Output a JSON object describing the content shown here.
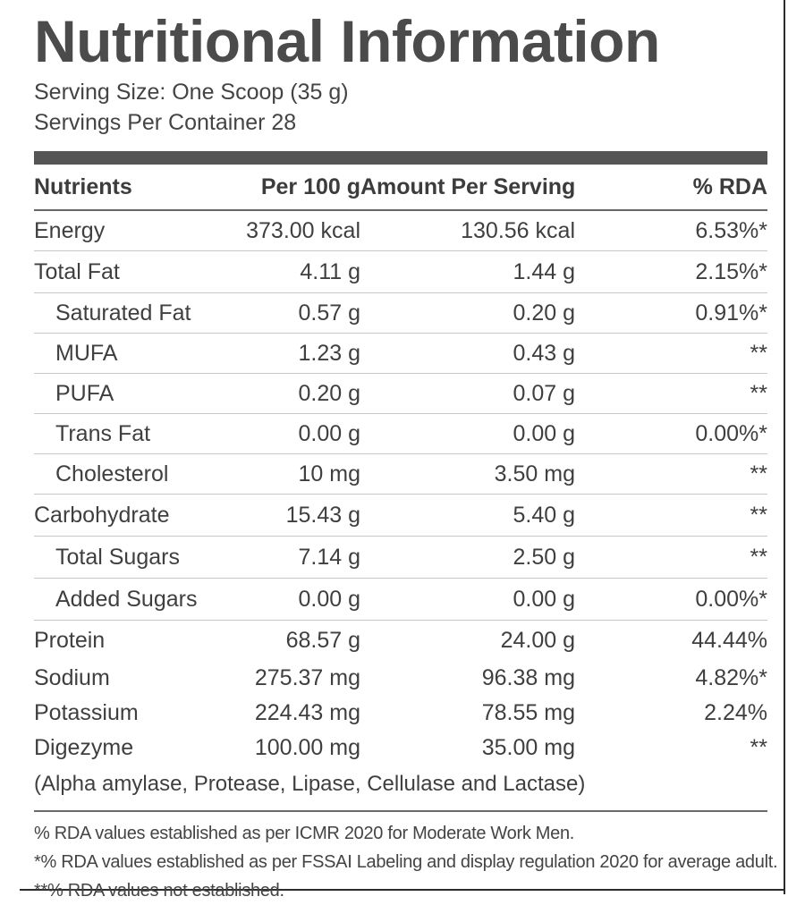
{
  "title": "Nutritional Information",
  "serving_size": "Serving Size: One Scoop (35 g)",
  "servings_per_container": "Servings Per Container 28",
  "table": {
    "headers": [
      "Nutrients",
      "Per 100 g",
      "Amount Per Serving",
      "% RDA"
    ],
    "rows": [
      {
        "name": "Energy",
        "per100": "373.00 kcal",
        "serving": "130.56 kcal",
        "rda": "6.53%*"
      },
      {
        "name": "Total Fat",
        "per100": "4.11 g",
        "serving": "1.44 g",
        "rda": "2.15%*"
      },
      {
        "name": "Saturated Fat",
        "per100": "0.57 g",
        "serving": "0.20 g",
        "rda": "0.91%*"
      },
      {
        "name": "MUFA",
        "per100": "1.23 g",
        "serving": "0.43 g",
        "rda": "**"
      },
      {
        "name": "PUFA",
        "per100": "0.20 g",
        "serving": "0.07 g",
        "rda": "**"
      },
      {
        "name": "Trans Fat",
        "per100": "0.00 g",
        "serving": "0.00 g",
        "rda": "0.00%*"
      },
      {
        "name": "Cholesterol",
        "per100": "10 mg",
        "serving": "3.50 mg",
        "rda": "**"
      },
      {
        "name": "Carbohydrate",
        "per100": "15.43 g",
        "serving": "5.40 g",
        "rda": "**"
      },
      {
        "name": "Total Sugars",
        "per100": "7.14 g",
        "serving": "2.50 g",
        "rda": "**"
      },
      {
        "name": "Added Sugars",
        "per100": "0.00 g",
        "serving": "0.00 g",
        "rda": "0.00%*"
      },
      {
        "name": "Protein",
        "per100": "68.57 g",
        "serving": "24.00 g",
        "rda": "44.44%"
      },
      {
        "name": "Sodium",
        "per100": "275.37 mg",
        "serving": "96.38 mg",
        "rda": "4.82%*"
      },
      {
        "name": "Potassium",
        "per100": "224.43 mg",
        "serving": "78.55 mg",
        "rda": "2.24%"
      },
      {
        "name": "Digezyme",
        "per100": "100.00 mg",
        "serving": "35.00 mg",
        "rda": "**"
      }
    ],
    "digezyme_note": "(Alpha amylase, Protease, Lipase, Cellulase and Lactase)"
  },
  "footnotes": [
    "% RDA values established as per ICMR 2020 for Moderate Work Men.",
    "*% RDA values established as per FSSAI Labeling and display regulation 2020 for average adult.",
    "**% RDA values not established."
  ]
}
